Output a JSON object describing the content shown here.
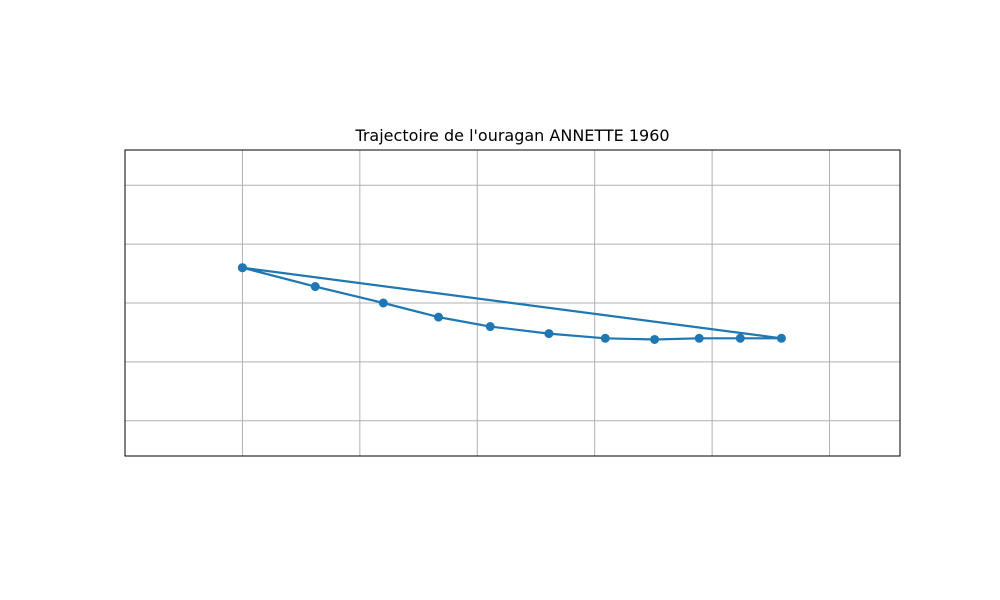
{
  "chart_data": {
    "type": "line",
    "title": "Trajectoire de l'ouragan ANNETTE 1960",
    "xlabel": "",
    "ylabel": "",
    "xlim": [
      -2.0,
      4.6
    ],
    "ylim": [
      -1.7,
      0.9
    ],
    "grid": true,
    "x_gridlines": [
      -1,
      0,
      1,
      2,
      3,
      4
    ],
    "y_gridlines": [
      0.6,
      0.1,
      -0.4,
      -0.9,
      -1.4
    ],
    "color": "#1f77b4",
    "series": [
      {
        "name": "",
        "x": [
          -1.0,
          -0.38,
          0.2,
          0.67,
          1.11,
          1.61,
          2.09,
          2.51,
          2.89,
          3.24,
          3.59,
          -1.0
        ],
        "y": [
          -0.1,
          -0.26,
          -0.4,
          -0.52,
          -0.6,
          -0.66,
          -0.7,
          -0.71,
          -0.7,
          -0.7,
          -0.7,
          -0.1
        ]
      }
    ]
  }
}
